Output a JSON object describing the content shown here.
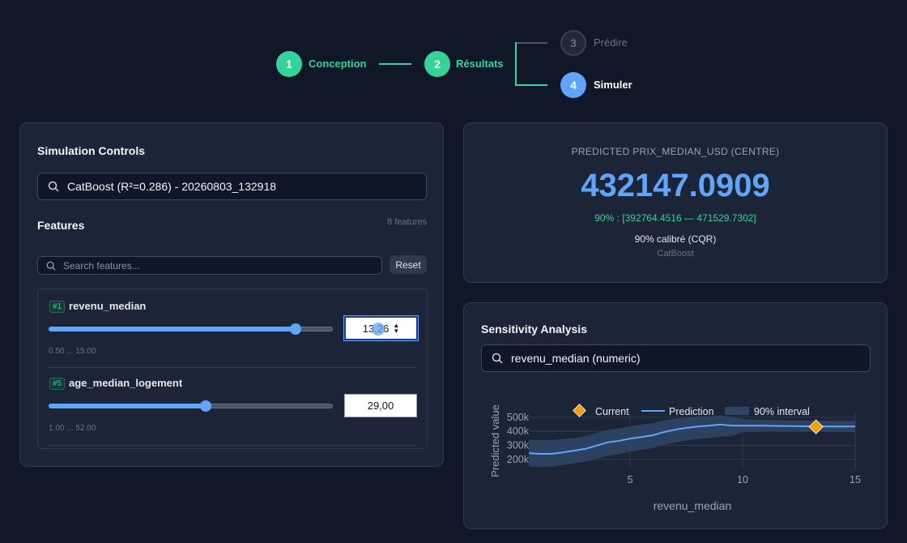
{
  "stepper": {
    "steps": [
      {
        "number": "1",
        "label": "Conception",
        "state": "done"
      },
      {
        "number": "2",
        "label": "Résultats",
        "state": "done"
      },
      {
        "number": "3",
        "label": "Prédire",
        "state": "pending"
      },
      {
        "number": "4",
        "label": "Simuler",
        "state": "active"
      }
    ]
  },
  "controls": {
    "title": "Simulation Controls",
    "model_select": "CatBoost (R²=0.286) - 20260803_132918",
    "features_title": "Features",
    "features_count": "8 features",
    "search_placeholder": "Search features...",
    "reset_label": "Reset",
    "features": [
      {
        "rank": "#1",
        "name": "revenu_median",
        "value": "13,26",
        "range": "0.50 ... 15.00",
        "slider_fraction": 0.88
      },
      {
        "rank": "#5",
        "name": "age_median_logement",
        "value": "29,00",
        "range": "1.00 ... 52.00",
        "slider_fraction": 0.55
      }
    ]
  },
  "prediction": {
    "caption": "PREDICTED PRIX_MEDIAN_USD (CENTRE)",
    "value": "432147.0909",
    "interval": "90% : [392764.4516 — 471529.7302]",
    "calibration": "90% calibré (CQR)",
    "model": "CatBoost"
  },
  "sensitivity": {
    "title": "Sensitivity Analysis",
    "feature_select": "revenu_median (numeric)"
  },
  "chart_data": {
    "type": "line",
    "xlabel": "revenu_median",
    "ylabel": "Predicted value",
    "xlim": [
      0.5,
      15
    ],
    "ylim": [
      130000,
      540000
    ],
    "x_ticks": [
      "5",
      "10",
      "15"
    ],
    "y_ticks": [
      "200k",
      "300k",
      "400k",
      "500k"
    ],
    "legend": [
      "Current",
      "Prediction",
      "90% interval"
    ],
    "legend_position": "top",
    "grid": true,
    "series": [
      {
        "name": "Prediction",
        "color": "#60a5fa",
        "x": [
          0.5,
          1,
          1.5,
          2,
          2.5,
          3,
          3.5,
          4,
          4.5,
          5,
          5.5,
          6,
          6.5,
          7,
          7.5,
          8,
          8.5,
          9,
          9.5,
          10,
          11,
          12,
          13,
          14,
          15
        ],
        "y": [
          245000,
          240000,
          240000,
          250000,
          262000,
          275000,
          298000,
          322000,
          332000,
          348000,
          360000,
          372000,
          395000,
          412000,
          425000,
          435000,
          440000,
          448000,
          442000,
          440000,
          440000,
          437000,
          436000,
          435000,
          435000
        ],
        "lower": [
          150000,
          145000,
          148000,
          160000,
          172000,
          185000,
          205000,
          225000,
          238000,
          255000,
          268000,
          280000,
          302000,
          320000,
          335000,
          345000,
          352000,
          362000,
          365000,
          395000,
          400000,
          398000,
          396000,
          396000,
          396000
        ],
        "upper": [
          340000,
          338000,
          338000,
          345000,
          352000,
          365000,
          388000,
          410000,
          420000,
          435000,
          448000,
          458000,
          478000,
          490000,
          498000,
          505000,
          508000,
          512000,
          505000,
          488000,
          482000,
          478000,
          476000,
          475000,
          475000
        ]
      }
    ],
    "current": {
      "x": 13.26,
      "y": 432147.09
    },
    "colors": {
      "prediction": "#60a5fa",
      "band": "#2f4566",
      "current": "#f59e0b"
    }
  }
}
